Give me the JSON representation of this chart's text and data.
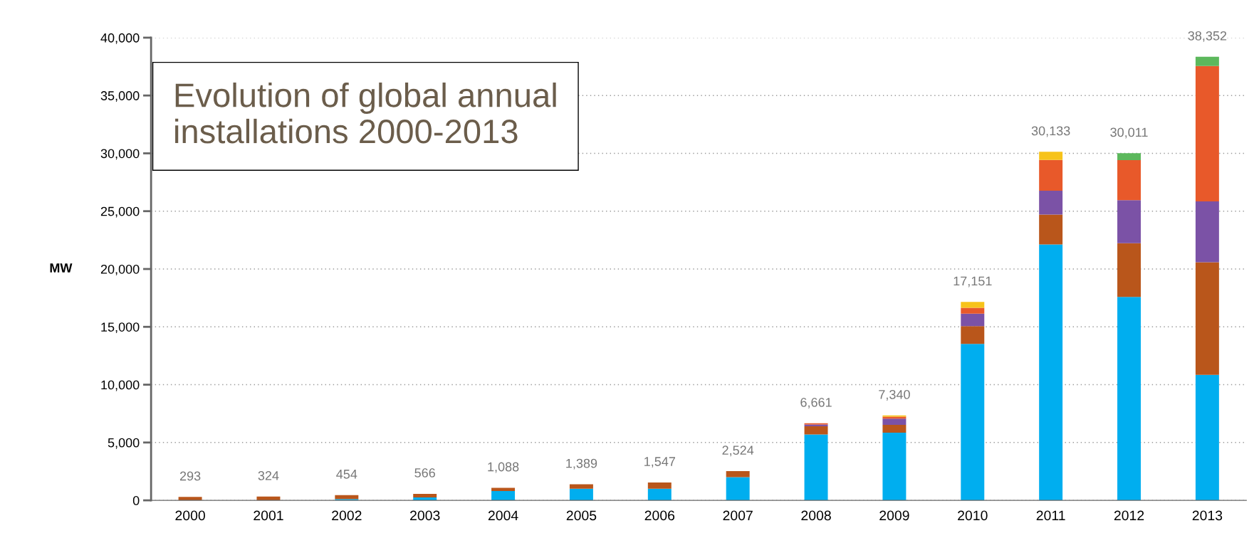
{
  "chart_data": {
    "type": "bar",
    "stacked": true,
    "title": "Evolution of global annual\ninstallations 2000-2013",
    "ylabel": "MW",
    "categories": [
      "2000",
      "2001",
      "2002",
      "2003",
      "2004",
      "2005",
      "2006",
      "2007",
      "2008",
      "2009",
      "2010",
      "2011",
      "2012",
      "2013"
    ],
    "series": [
      {
        "color": "#00aeef",
        "values": [
          0,
          0,
          120,
          250,
          800,
          1000,
          1000,
          2000,
          5700,
          5850,
          13531,
          22123,
          17591,
          10842
        ]
      },
      {
        "color": "#b9561b",
        "values": [
          293,
          324,
          334,
          316,
          288,
          389,
          547,
          524,
          701,
          680,
          1530,
          2590,
          4640,
          9740
        ]
      },
      {
        "color": "#7b52a6",
        "values": [
          0,
          0,
          0,
          0,
          0,
          0,
          0,
          0,
          160,
          530,
          1080,
          2060,
          3720,
          5270
        ]
      },
      {
        "color": "#e8592a",
        "values": [
          0,
          0,
          0,
          0,
          0,
          0,
          0,
          0,
          100,
          180,
          510,
          2660,
          3460,
          11700
        ]
      },
      {
        "color": "#f7c31a",
        "values": [
          0,
          0,
          0,
          0,
          0,
          0,
          0,
          0,
          0,
          100,
          500,
          700,
          0,
          0
        ]
      },
      {
        "color": "#5cb85c",
        "values": [
          0,
          0,
          0,
          0,
          0,
          0,
          0,
          0,
          0,
          0,
          0,
          0,
          600,
          800
        ]
      }
    ],
    "totals": [
      "293",
      "324",
      "454",
      "566",
      "1,088",
      "1,389",
      "1,547",
      "2,524",
      "6,661",
      "7,340",
      "17,151",
      "30,133",
      "30,011",
      "38,352"
    ],
    "ylim": [
      0,
      40000
    ],
    "yticks": [
      {
        "value": 0,
        "label": "0"
      },
      {
        "value": 5000,
        "label": "5,000"
      },
      {
        "value": 10000,
        "label": "10,000"
      },
      {
        "value": 15000,
        "label": "15,000"
      },
      {
        "value": 20000,
        "label": "20,000"
      },
      {
        "value": 25000,
        "label": "25,000"
      },
      {
        "value": 30000,
        "label": "30,000"
      },
      {
        "value": 35000,
        "label": "35,000"
      },
      {
        "value": 40000,
        "label": "40,000"
      }
    ],
    "grid": "y",
    "legend": false
  }
}
